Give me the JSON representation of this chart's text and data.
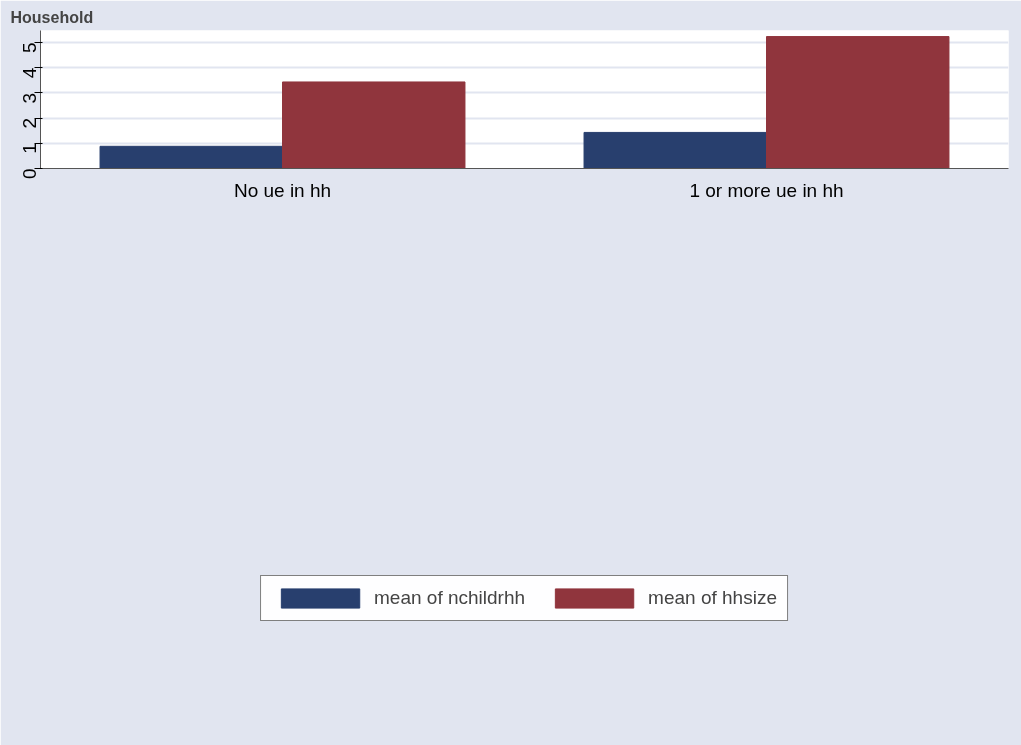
{
  "chart_data": {
    "type": "bar",
    "title": "Household",
    "categories": [
      "No ue in hh",
      "1 or more ue in hh"
    ],
    "series": [
      {
        "name": "mean of nchildrhh",
        "color": "#283f6e",
        "values": [
          0.88,
          1.43
        ]
      },
      {
        "name": "mean of hhsize",
        "color": "#90353d",
        "values": [
          3.43,
          5.23
        ]
      }
    ],
    "ylim": [
      0,
      5.47
    ],
    "yticks": [
      0,
      1,
      2,
      3,
      4,
      5
    ],
    "grid": "y",
    "legend": "bottom"
  }
}
